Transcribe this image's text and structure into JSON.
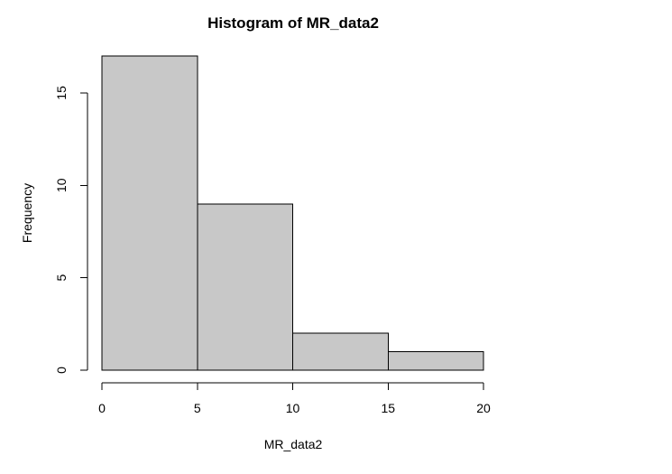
{
  "chart_data": {
    "type": "bar",
    "title": "Histogram of MR_data2",
    "xlabel": "MR_data2",
    "ylabel": "Frequency",
    "bins": [
      {
        "from": 0,
        "to": 5,
        "count": 17
      },
      {
        "from": 5,
        "to": 10,
        "count": 9
      },
      {
        "from": 10,
        "to": 15,
        "count": 2
      },
      {
        "from": 15,
        "to": 20,
        "count": 1
      }
    ],
    "xticks": [
      0,
      5,
      10,
      15,
      20
    ],
    "yticks": [
      0,
      5,
      10,
      15
    ],
    "xlim": [
      0,
      20
    ],
    "ylim": [
      0,
      17
    ],
    "grid": false,
    "bar_fill": "#c8c8c8",
    "bar_stroke": "#000000"
  }
}
